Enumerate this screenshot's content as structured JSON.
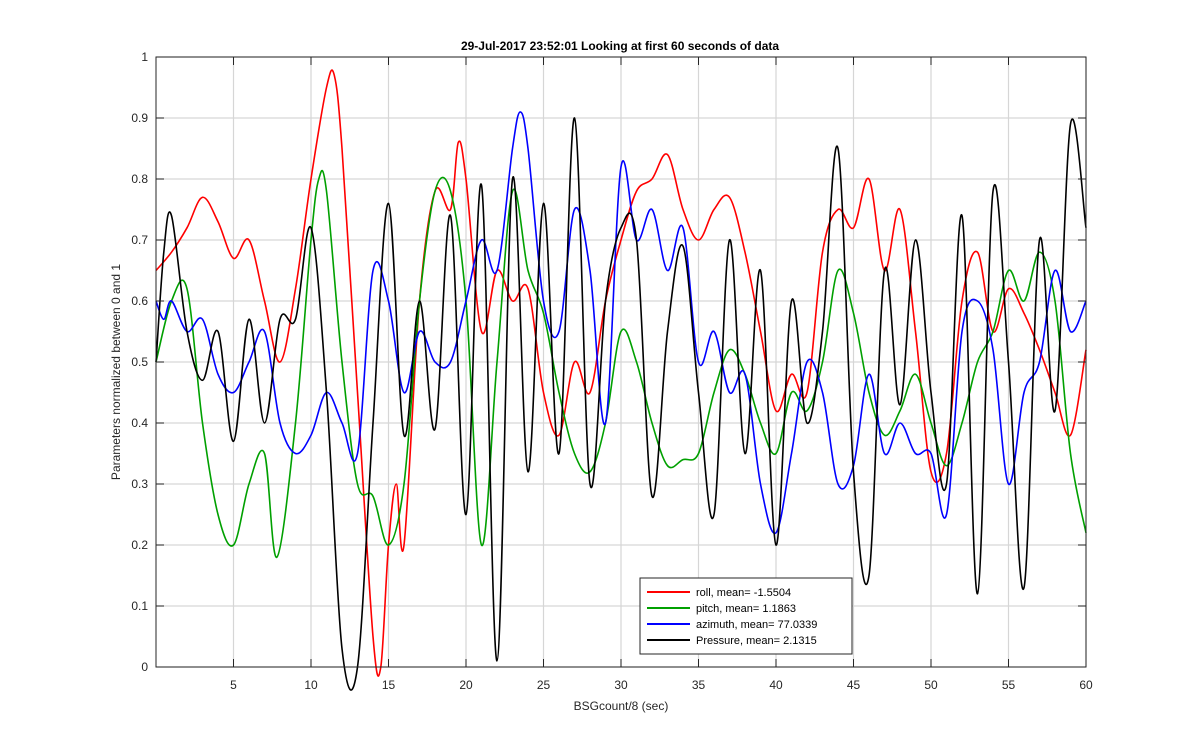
{
  "chart_data": {
    "type": "line",
    "title": "29-Jul-2017 23:52:01 Looking at first 60 seconds of data",
    "xlabel": "BSGcount/8 (sec)",
    "ylabel": "Parameters normalized between 0 and 1",
    "xlim": [
      0,
      60
    ],
    "ylim": [
      0,
      1
    ],
    "xticks": [
      5,
      10,
      15,
      20,
      25,
      30,
      35,
      40,
      45,
      50,
      55,
      60
    ],
    "xtick_labels": [
      "5",
      "10",
      "15",
      "20",
      "25",
      "30",
      "35",
      "40",
      "45",
      "50",
      "55",
      "60"
    ],
    "yticks": [
      0,
      0.1,
      0.2,
      0.3,
      0.4,
      0.5,
      0.6,
      0.7,
      0.8,
      0.9,
      1
    ],
    "ytick_labels": [
      "0",
      "0.1",
      "0.2",
      "0.3",
      "0.4",
      "0.5",
      "0.6",
      "0.7",
      "0.8",
      "0.9",
      "1"
    ],
    "grid": true,
    "legend_position": "bottom-center",
    "series": [
      {
        "name": "roll, mean= -1.5504",
        "color": "#ff0000",
        "x": [
          0,
          1,
          2,
          3,
          4,
          5,
          6,
          7,
          8,
          9,
          10,
          11,
          11.5,
          12,
          13,
          14,
          14.5,
          15,
          15.5,
          16,
          17,
          18,
          19,
          19.5,
          20,
          21,
          22,
          23,
          24,
          25,
          26,
          27,
          28,
          29,
          30,
          31,
          32,
          33,
          34,
          35,
          36,
          37,
          38,
          39,
          40,
          41,
          42,
          43,
          44,
          45,
          46,
          47,
          48,
          49,
          50,
          51,
          52,
          53,
          54,
          55,
          56,
          57,
          58,
          59,
          60
        ],
        "y": [
          0.65,
          0.68,
          0.72,
          0.77,
          0.73,
          0.67,
          0.7,
          0.6,
          0.5,
          0.62,
          0.8,
          0.95,
          0.97,
          0.85,
          0.45,
          0.05,
          0.0,
          0.2,
          0.3,
          0.2,
          0.6,
          0.78,
          0.75,
          0.86,
          0.8,
          0.55,
          0.65,
          0.6,
          0.62,
          0.45,
          0.38,
          0.5,
          0.45,
          0.6,
          0.7,
          0.78,
          0.8,
          0.84,
          0.75,
          0.7,
          0.75,
          0.77,
          0.68,
          0.55,
          0.42,
          0.48,
          0.45,
          0.68,
          0.75,
          0.72,
          0.8,
          0.65,
          0.75,
          0.55,
          0.32,
          0.35,
          0.6,
          0.68,
          0.55,
          0.62,
          0.58,
          0.52,
          0.45,
          0.38,
          0.52
        ]
      },
      {
        "name": "pitch, mean= 1.1863",
        "color": "#00a000",
        "x": [
          0,
          1,
          2,
          3,
          4,
          5,
          6,
          7,
          7.8,
          9,
          10,
          10.5,
          11,
          12,
          13,
          14,
          15,
          16,
          17,
          18,
          19,
          20,
          21,
          22,
          23,
          24,
          25,
          26,
          27,
          28,
          29,
          30,
          31,
          32,
          33,
          34,
          35,
          36,
          37,
          38,
          39,
          40,
          41,
          42,
          43,
          44,
          45,
          46,
          47,
          48,
          49,
          50,
          51,
          52,
          53,
          54,
          55,
          56,
          57,
          58,
          59,
          60
        ],
        "y": [
          0.5,
          0.6,
          0.62,
          0.4,
          0.25,
          0.2,
          0.3,
          0.35,
          0.18,
          0.4,
          0.7,
          0.8,
          0.78,
          0.5,
          0.3,
          0.28,
          0.2,
          0.3,
          0.6,
          0.78,
          0.78,
          0.6,
          0.2,
          0.5,
          0.78,
          0.65,
          0.58,
          0.45,
          0.35,
          0.32,
          0.4,
          0.55,
          0.5,
          0.4,
          0.33,
          0.34,
          0.35,
          0.45,
          0.52,
          0.48,
          0.4,
          0.35,
          0.45,
          0.42,
          0.5,
          0.65,
          0.58,
          0.45,
          0.38,
          0.42,
          0.48,
          0.4,
          0.33,
          0.4,
          0.5,
          0.55,
          0.65,
          0.6,
          0.68,
          0.6,
          0.35,
          0.22
        ]
      },
      {
        "name": "azimuth, mean= 77.0339",
        "color": "#0000ff",
        "x": [
          0,
          0.5,
          1,
          2,
          3,
          4,
          5,
          6,
          7,
          8,
          9,
          10,
          11,
          12,
          13,
          14,
          15,
          16,
          17,
          18,
          19,
          20,
          21,
          22,
          23,
          23.5,
          24,
          25,
          26,
          27,
          28,
          29,
          30,
          31,
          32,
          33,
          34,
          35,
          36,
          37,
          38,
          39,
          40,
          41,
          42,
          43,
          44,
          45,
          46,
          47,
          48,
          49,
          50,
          51,
          52,
          53,
          54,
          55,
          56,
          57,
          58,
          59,
          60
        ],
        "y": [
          0.6,
          0.57,
          0.6,
          0.55,
          0.57,
          0.48,
          0.45,
          0.5,
          0.55,
          0.4,
          0.35,
          0.38,
          0.45,
          0.4,
          0.35,
          0.65,
          0.6,
          0.45,
          0.55,
          0.5,
          0.5,
          0.6,
          0.7,
          0.65,
          0.85,
          0.91,
          0.85,
          0.6,
          0.55,
          0.75,
          0.65,
          0.4,
          0.82,
          0.7,
          0.75,
          0.65,
          0.72,
          0.5,
          0.55,
          0.45,
          0.48,
          0.3,
          0.22,
          0.35,
          0.5,
          0.45,
          0.3,
          0.33,
          0.48,
          0.35,
          0.4,
          0.35,
          0.35,
          0.25,
          0.55,
          0.6,
          0.52,
          0.3,
          0.45,
          0.5,
          0.65,
          0.55,
          0.6
        ]
      },
      {
        "name": "Pressure, mean= 2.1315",
        "color": "#000000",
        "x": [
          0,
          0.5,
          1,
          2,
          3,
          4,
          5,
          6,
          7,
          8,
          9,
          10,
          11,
          12,
          13,
          14,
          15,
          16,
          17,
          18,
          19,
          20,
          21,
          22,
          23,
          24,
          25,
          26,
          27,
          28,
          29,
          30,
          31,
          32,
          33,
          34,
          35,
          36,
          37,
          38,
          39,
          40,
          41,
          42,
          43,
          44,
          45,
          46,
          47,
          48,
          49,
          50,
          51,
          52,
          53,
          54,
          55,
          56,
          57,
          58,
          59,
          60
        ],
        "y": [
          0.5,
          0.68,
          0.74,
          0.55,
          0.47,
          0.55,
          0.37,
          0.57,
          0.4,
          0.57,
          0.57,
          0.72,
          0.45,
          0.03,
          0.0,
          0.4,
          0.76,
          0.38,
          0.6,
          0.39,
          0.74,
          0.25,
          0.79,
          0.01,
          0.8,
          0.32,
          0.76,
          0.35,
          0.9,
          0.3,
          0.6,
          0.72,
          0.7,
          0.28,
          0.55,
          0.69,
          0.45,
          0.25,
          0.7,
          0.35,
          0.65,
          0.2,
          0.6,
          0.4,
          0.55,
          0.85,
          0.32,
          0.15,
          0.65,
          0.43,
          0.7,
          0.45,
          0.3,
          0.74,
          0.12,
          0.78,
          0.5,
          0.13,
          0.7,
          0.42,
          0.89,
          0.72
        ]
      }
    ]
  }
}
